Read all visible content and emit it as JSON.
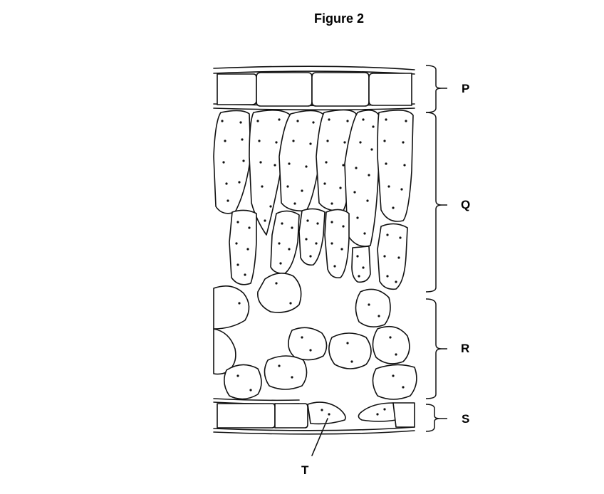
{
  "figure": {
    "title": "Figure 2",
    "labels": {
      "p": "P",
      "q": "Q",
      "r": "R",
      "s": "S",
      "t": "T"
    }
  },
  "colors": {
    "background": "#ffffff",
    "ink": "#111111"
  }
}
